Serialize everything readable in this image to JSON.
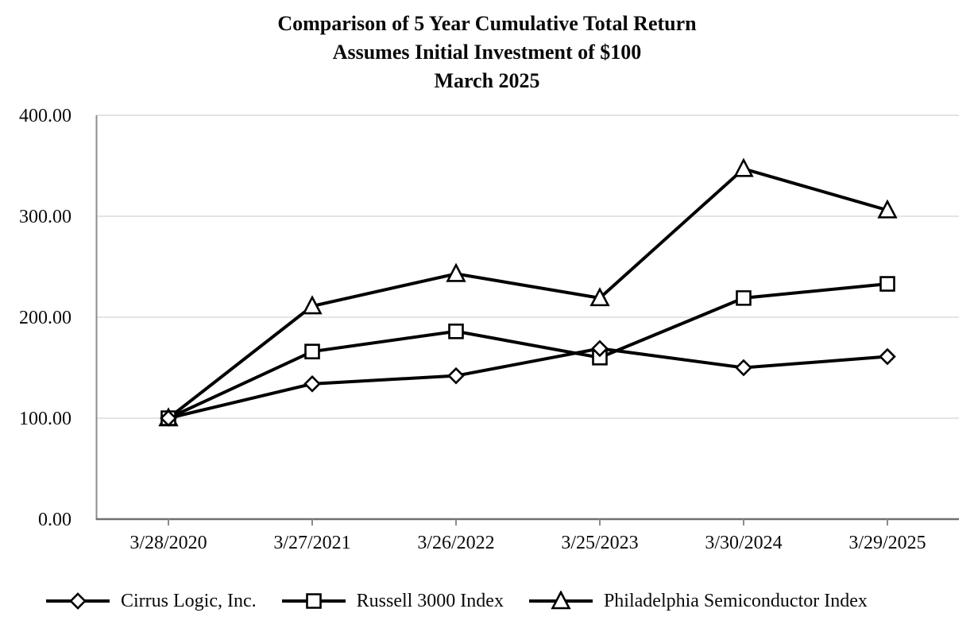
{
  "title": {
    "line1": "Comparison of 5 Year Cumulative Total Return",
    "line2": "Assumes Initial Investment of $100",
    "line3": "March 2025"
  },
  "chart_data": {
    "type": "line",
    "title": [
      "Comparison of 5 Year Cumulative Total Return",
      "Assumes Initial Investment of $100",
      "March 2025"
    ],
    "categories": [
      "3/28/2020",
      "3/27/2021",
      "3/26/2022",
      "3/25/2023",
      "3/30/2024",
      "3/29/2025"
    ],
    "series": [
      {
        "name": "Cirrus Logic, Inc.",
        "marker": "diamond",
        "values": [
          100.0,
          134.0,
          142.0,
          169.0,
          150.0,
          161.0
        ]
      },
      {
        "name": "Russell 3000 Index",
        "marker": "square",
        "values": [
          100.0,
          166.0,
          186.0,
          160.0,
          219.0,
          233.0
        ]
      },
      {
        "name": "Philadelphia Semiconductor Index",
        "marker": "triangle",
        "values": [
          100.0,
          211.0,
          243.0,
          219.0,
          347.0,
          306.0
        ]
      }
    ],
    "xlabel": "",
    "ylabel": "",
    "ylim": [
      0,
      400
    ],
    "yticks": [
      0,
      100,
      200,
      300,
      400
    ],
    "ytick_labels": [
      "0.00",
      "100.00",
      "200.00",
      "300.00",
      "400.00"
    ],
    "grid": true,
    "legend_position": "bottom",
    "colors": {
      "line": "#000000",
      "marker_fill": "#ffffff",
      "grid": "#dcdcdc",
      "axis": "#8c8c8c",
      "x_axis": "#707070",
      "text": "#0a0a0a"
    }
  }
}
